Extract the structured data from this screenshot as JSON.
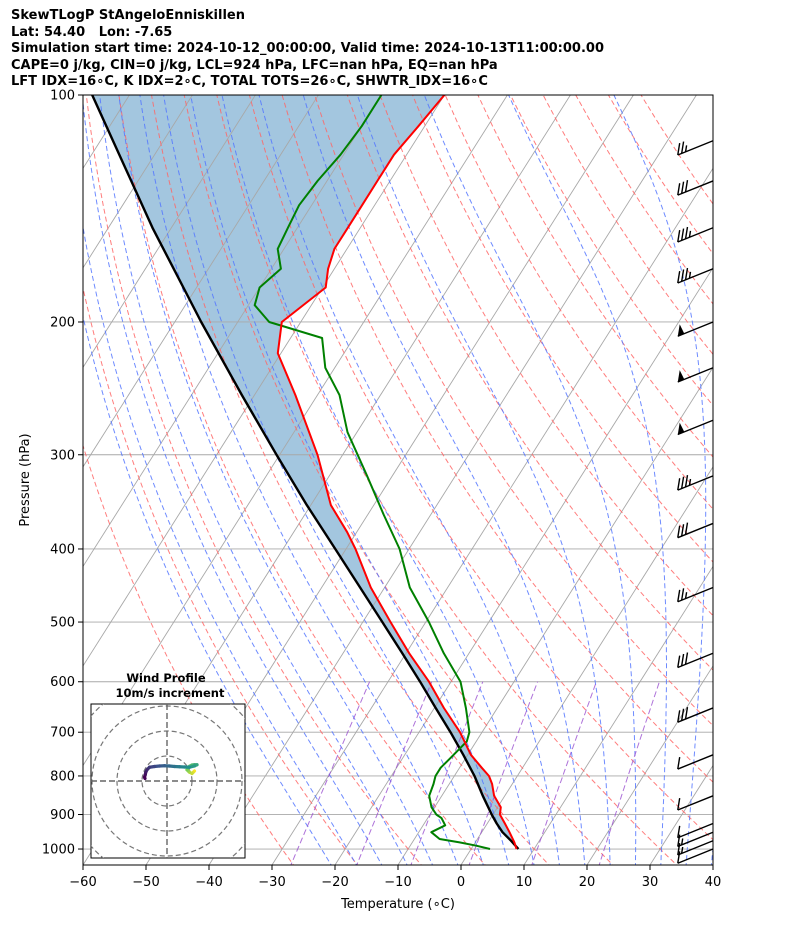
{
  "header": {
    "line1": "SkewTLogP StAngeloEnniskillen",
    "line2": "Lat: 54.40   Lon: -7.65",
    "line3": "Simulation start time: 2024-10-12_00:00:00, Valid time: 2024-10-13T11:00:00.00",
    "line4": "CAPE=0 j/kg, CIN=0 j/kg, LCL=924 hPa, LFC=nan hPa, EQ=nan hPa",
    "line5": "LFT IDX=16∘C, K IDX=2∘C, TOTAL TOTS=26∘C, SHWTR_IDX=16∘C"
  },
  "colors": {
    "temperature": "#ff0000",
    "dewpoint": "#008000",
    "parcel": "#000000",
    "fill": "#a3c6df",
    "dry_adiabats": "#ff6666",
    "moist_adiabats": "#5577ff",
    "mixing_ratio": "#9a4fcf",
    "isotherms": "#a8a8a8"
  },
  "chart_data": {
    "type": "line",
    "xlabel": "Temperature (∘C)",
    "ylabel": "Pressure (hPa)",
    "xlim": [
      -60,
      40
    ],
    "ylim": [
      1050,
      100
    ],
    "y_scale": "log",
    "grid": true,
    "x_ticks": [
      "−60",
      "−50",
      "−40",
      "−30",
      "−20",
      "−10",
      "0",
      "10",
      "20",
      "30",
      "40"
    ],
    "y_ticks": [
      "100",
      "200",
      "300",
      "400",
      "500",
      "600",
      "700",
      "800",
      "900",
      "1000"
    ],
    "series": [
      {
        "key": "temperature",
        "pressure": [
          1000,
          980,
          950,
          925,
          900,
          880,
          850,
          820,
          800,
          780,
          750,
          700,
          650,
          600,
          550,
          500,
          450,
          400,
          380,
          350,
          300,
          250,
          220,
          200,
          180,
          170,
          160,
          150,
          140,
          130,
          120,
          110,
          100
        ],
        "temp": [
          7.2,
          6.2,
          4.4,
          2.8,
          1.1,
          0.5,
          -1.7,
          -3.2,
          -4.5,
          -6.5,
          -9.5,
          -13.5,
          -18.5,
          -23.5,
          -29.5,
          -35.6,
          -42.2,
          -48.5,
          -51.5,
          -56.8,
          -64,
          -73.5,
          -80.5,
          -83,
          -79.5,
          -81,
          -82,
          -82,
          -82,
          -82,
          -82,
          -81,
          -80
        ]
      },
      {
        "key": "dewpoint",
        "pressure": [
          1000,
          990,
          980,
          970,
          950,
          930,
          910,
          900,
          880,
          850,
          820,
          800,
          780,
          760,
          740,
          720,
          700,
          650,
          600,
          550,
          500,
          450,
          400,
          360,
          320,
          280,
          250,
          230,
          210,
          200,
          190,
          180,
          170,
          160,
          150,
          140,
          130,
          120,
          110,
          100
        ],
        "temp": [
          3,
          0.5,
          -2.5,
          -6,
          -8,
          -6.5,
          -7.8,
          -9,
          -10.5,
          -12,
          -12.5,
          -13,
          -13,
          -12.5,
          -12,
          -11.5,
          -12,
          -15,
          -18.5,
          -24,
          -29.5,
          -36,
          -41.5,
          -47.5,
          -54,
          -61.5,
          -66.5,
          -71.5,
          -75,
          -85,
          -89,
          -90,
          -88.5,
          -91,
          -91.5,
          -92,
          -91.5,
          -90.5,
          -90,
          -90
        ]
      },
      {
        "key": "parcel",
        "pressure": [
          1000,
          975,
          950,
          925,
          900,
          850,
          800,
          750,
          700,
          650,
          600,
          550,
          500,
          450,
          400,
          350,
          300,
          250,
          200,
          150,
          100
        ],
        "temp": [
          7.5,
          5.5,
          3.3,
          1.5,
          -0.2,
          -3.5,
          -6.8,
          -10.7,
          -15,
          -19.8,
          -24.9,
          -30.6,
          -36.9,
          -43.9,
          -51.7,
          -60.6,
          -70.5,
          -82,
          -95.8,
          -113,
          -135.9
        ]
      }
    ],
    "wind_barbs": [
      {
        "pressure": 1000,
        "speed_kt": 10
      },
      {
        "pressure": 975,
        "speed_kt": 15
      },
      {
        "pressure": 950,
        "speed_kt": 15
      },
      {
        "pressure": 925,
        "speed_kt": 10
      },
      {
        "pressure": 850,
        "speed_kt": 10
      },
      {
        "pressure": 750,
        "speed_kt": 10
      },
      {
        "pressure": 650,
        "speed_kt": 30
      },
      {
        "pressure": 550,
        "speed_kt": 30
      },
      {
        "pressure": 450,
        "speed_kt": 25
      },
      {
        "pressure": 370,
        "speed_kt": 30
      },
      {
        "pressure": 320,
        "speed_kt": 35
      },
      {
        "pressure": 270,
        "speed_kt": 50
      },
      {
        "pressure": 230,
        "speed_kt": 50
      },
      {
        "pressure": 200,
        "speed_kt": 50
      },
      {
        "pressure": 170,
        "speed_kt": 35
      },
      {
        "pressure": 150,
        "speed_kt": 35
      },
      {
        "pressure": 130,
        "speed_kt": 30
      },
      {
        "pressure": 115,
        "speed_kt": 25
      }
    ],
    "hodograph": {
      "title": "Wind Profile",
      "subtitle": "10m/s increment",
      "ring_interval_ms": 10,
      "u": [
        11,
        10.5,
        10,
        9,
        8.5,
        8,
        8.5,
        9,
        10,
        11,
        12,
        11,
        9,
        7,
        5,
        3,
        1,
        -1,
        -3,
        -5,
        -7,
        -8,
        -8.5,
        -8.7,
        -9,
        -8.8
      ],
      "v": [
        4,
        3.5,
        3,
        3.5,
        4,
        4.5,
        5.2,
        5.9,
        6.4,
        6.5,
        6.5,
        6,
        5.5,
        5.6,
        5.7,
        5.8,
        6,
        6.1,
        6,
        5.8,
        5.5,
        4.5,
        3.5,
        2.5,
        1.5,
        1
      ]
    }
  }
}
